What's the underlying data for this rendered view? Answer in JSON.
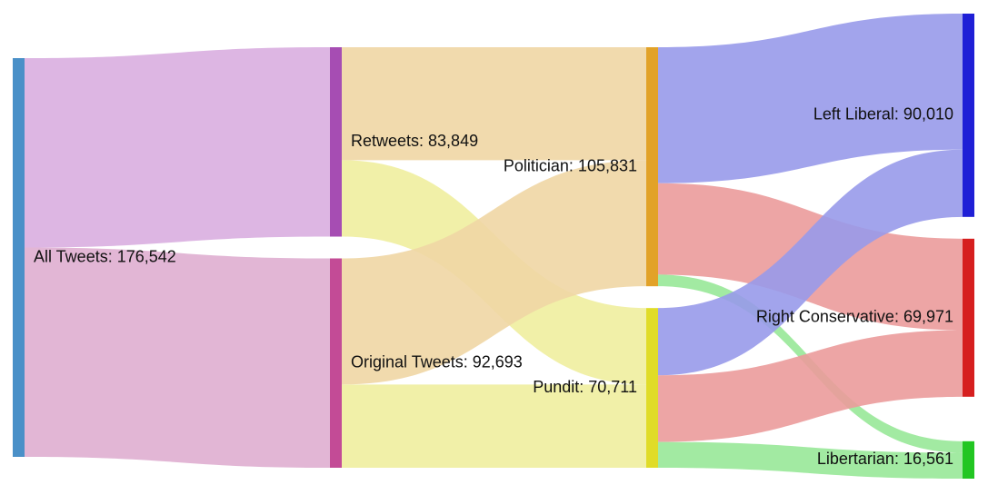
{
  "chart_data": {
    "type": "sankey",
    "nodes": [
      {
        "id": "all",
        "label": "All Tweets: 176,542",
        "name": "All Tweets",
        "value": 176542,
        "color": "#4a90c8"
      },
      {
        "id": "retweets",
        "label": "Retweets: 83,849",
        "name": "Retweets",
        "value": 83849,
        "color": "#a64db3"
      },
      {
        "id": "original",
        "label": "Original Tweets: 92,693",
        "name": "Original Tweets",
        "value": 92693,
        "color": "#c34b96"
      },
      {
        "id": "politician",
        "label": "Politician: 105,831",
        "name": "Politician",
        "value": 105831,
        "color": "#e2a228"
      },
      {
        "id": "pundit",
        "label": "Pundit: 70,711",
        "name": "Pundit",
        "value": 70711,
        "color": "#e0dc28"
      },
      {
        "id": "left",
        "label": "Left Liberal: 90,010",
        "name": "Left Liberal",
        "value": 90010,
        "color": "#1f1fd6"
      },
      {
        "id": "right",
        "label": "Right Conservative: 69,971",
        "name": "Right Conservative",
        "value": 69971,
        "color": "#d61f1f"
      },
      {
        "id": "libertarian",
        "label": "Libertarian: 16,561",
        "name": "Libertarian",
        "value": 16561,
        "color": "#22c622"
      }
    ],
    "links": [
      {
        "source": "all",
        "target": "retweets",
        "value": 83849,
        "color": "#d9aee0"
      },
      {
        "source": "all",
        "target": "original",
        "value": 92693,
        "color": "#dfaed0"
      },
      {
        "source": "retweets",
        "target": "politician",
        "value": 50000,
        "color": "#efd6a4"
      },
      {
        "source": "retweets",
        "target": "pundit",
        "value": 33849,
        "color": "#f0ee9e"
      },
      {
        "source": "original",
        "target": "politician",
        "value": 55831,
        "color": "#efd6a4"
      },
      {
        "source": "original",
        "target": "pundit",
        "value": 36862,
        "color": "#f0ee9e"
      },
      {
        "source": "politician",
        "target": "left",
        "value": 60200,
        "color": "#989aea"
      },
      {
        "source": "politician",
        "target": "right",
        "value": 40500,
        "color": "#eb9b9b"
      },
      {
        "source": "politician",
        "target": "libertarian",
        "value": 5131,
        "color": "#98e898"
      },
      {
        "source": "pundit",
        "target": "left",
        "value": 29810,
        "color": "#989aea"
      },
      {
        "source": "pundit",
        "target": "right",
        "value": 29471,
        "color": "#eb9b9b"
      },
      {
        "source": "pundit",
        "target": "libertarian",
        "value": 11430,
        "color": "#98e898"
      }
    ]
  }
}
